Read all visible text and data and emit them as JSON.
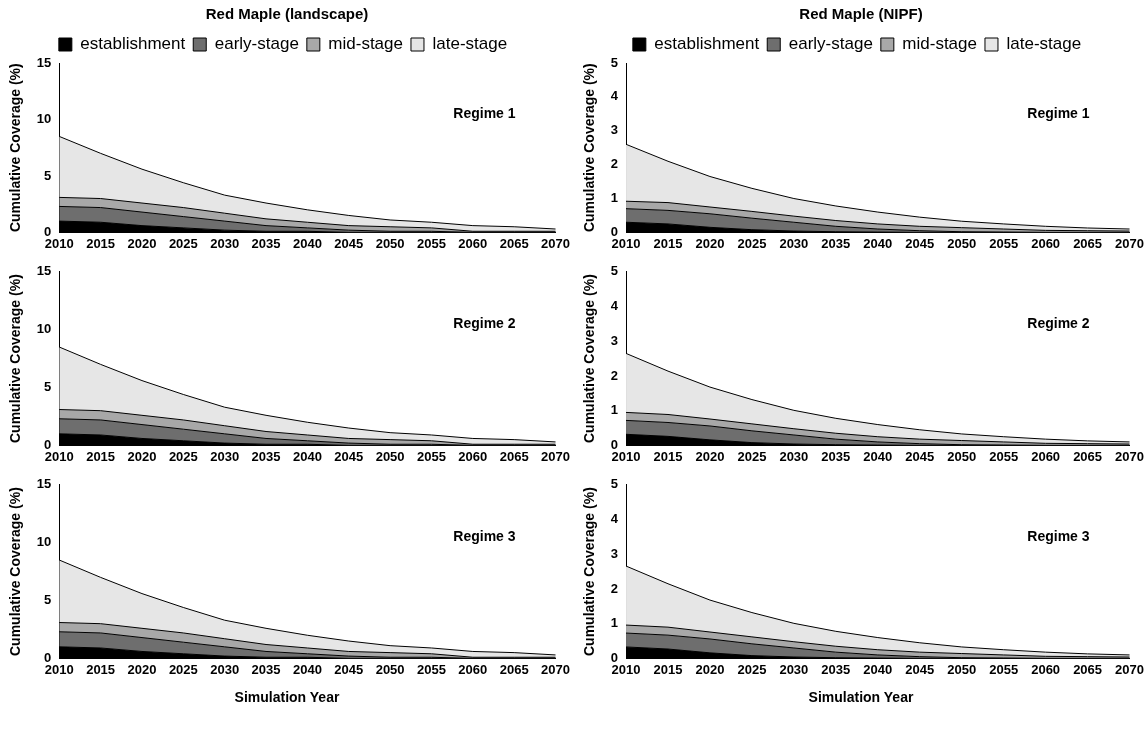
{
  "chart_data": [
    {
      "type": "area",
      "stacked": true,
      "title": "Red Maple (landscape)",
      "ylabel": "Cumulative Coverage (%)",
      "annotations": [
        "Regime 1"
      ],
      "legend": "top",
      "grid": false,
      "categories": [
        "2010",
        "2015",
        "2020",
        "2025",
        "2030",
        "2035",
        "2040",
        "2045",
        "2050",
        "2055",
        "2060",
        "2065",
        "2070"
      ],
      "ylim": [
        0,
        15
      ],
      "yticks": [
        0,
        5,
        10,
        15
      ],
      "series": [
        {
          "name": "establishment",
          "color": "#000000",
          "values": [
            1.0,
            0.9,
            0.6,
            0.4,
            0.2,
            0.1,
            0.1,
            0,
            0,
            0,
            0,
            0,
            0
          ]
        },
        {
          "name": "early-stage",
          "color": "#6e6e6e",
          "values": [
            1.3,
            1.3,
            1.2,
            1.0,
            0.8,
            0.5,
            0.3,
            0.2,
            0.1,
            0.1,
            0,
            0,
            0
          ]
        },
        {
          "name": "mid-stage",
          "color": "#a8a8a8",
          "values": [
            0.8,
            0.8,
            0.8,
            0.8,
            0.7,
            0.6,
            0.5,
            0.4,
            0.4,
            0.3,
            0.1,
            0.1,
            0.1
          ]
        },
        {
          "name": "late-stage",
          "color": "#e6e6e6",
          "values": [
            5.4,
            4.0,
            3.0,
            2.2,
            1.6,
            1.4,
            1.1,
            0.9,
            0.6,
            0.5,
            0.5,
            0.4,
            0.2
          ]
        }
      ]
    },
    {
      "type": "area",
      "stacked": true,
      "title": "Red Maple (NIPF)",
      "ylabel": "Cumulative Coverage (%)",
      "annotations": [
        "Regime 1"
      ],
      "legend": "top",
      "grid": false,
      "categories": [
        "2010",
        "2015",
        "2020",
        "2025",
        "2030",
        "2035",
        "2040",
        "2045",
        "2050",
        "2055",
        "2060",
        "2065",
        "2070"
      ],
      "ylim": [
        0,
        5
      ],
      "yticks": [
        0,
        1,
        2,
        3,
        4,
        5
      ],
      "series": [
        {
          "name": "establishment",
          "color": "#000000",
          "values": [
            0.3,
            0.25,
            0.15,
            0.08,
            0.04,
            0.02,
            0.01,
            0,
            0,
            0,
            0,
            0,
            0
          ]
        },
        {
          "name": "early-stage",
          "color": "#6e6e6e",
          "values": [
            0.4,
            0.4,
            0.4,
            0.34,
            0.26,
            0.16,
            0.09,
            0.05,
            0.02,
            0.01,
            0,
            0,
            0
          ]
        },
        {
          "name": "mid-stage",
          "color": "#a8a8a8",
          "values": [
            0.22,
            0.23,
            0.2,
            0.2,
            0.18,
            0.17,
            0.15,
            0.13,
            0.12,
            0.09,
            0.06,
            0.05,
            0.04
          ]
        },
        {
          "name": "late-stage",
          "color": "#e6e6e6",
          "values": [
            1.68,
            1.22,
            0.9,
            0.68,
            0.52,
            0.43,
            0.35,
            0.27,
            0.19,
            0.15,
            0.12,
            0.08,
            0.06
          ]
        }
      ]
    },
    {
      "type": "area",
      "stacked": true,
      "ylabel": "Cumulative Coverage (%)",
      "annotations": [
        "Regime 2"
      ],
      "grid": false,
      "categories": [
        "2010",
        "2015",
        "2020",
        "2025",
        "2030",
        "2035",
        "2040",
        "2045",
        "2050",
        "2055",
        "2060",
        "2065",
        "2070"
      ],
      "ylim": [
        0,
        15
      ],
      "yticks": [
        0,
        5,
        10,
        15
      ],
      "series": [
        {
          "color": "#000000",
          "values": [
            1.0,
            0.9,
            0.6,
            0.4,
            0.2,
            0.1,
            0.1,
            0,
            0,
            0,
            0,
            0,
            0
          ]
        },
        {
          "color": "#6e6e6e",
          "values": [
            1.3,
            1.3,
            1.2,
            1.0,
            0.8,
            0.5,
            0.3,
            0.2,
            0.1,
            0.1,
            0,
            0,
            0
          ]
        },
        {
          "color": "#a8a8a8",
          "values": [
            0.8,
            0.8,
            0.8,
            0.8,
            0.7,
            0.6,
            0.5,
            0.4,
            0.4,
            0.3,
            0.1,
            0.1,
            0.1
          ]
        },
        {
          "color": "#e6e6e6",
          "values": [
            5.4,
            4.0,
            3.0,
            2.2,
            1.6,
            1.4,
            1.1,
            0.9,
            0.6,
            0.5,
            0.5,
            0.4,
            0.2
          ]
        }
      ]
    },
    {
      "type": "area",
      "stacked": true,
      "ylabel": "Cumulative Coverage (%)",
      "annotations": [
        "Regime 2"
      ],
      "grid": false,
      "categories": [
        "2010",
        "2015",
        "2020",
        "2025",
        "2030",
        "2035",
        "2040",
        "2045",
        "2050",
        "2055",
        "2060",
        "2065",
        "2070"
      ],
      "ylim": [
        0,
        5
      ],
      "yticks": [
        0,
        1,
        2,
        3,
        4,
        5
      ],
      "series": [
        {
          "color": "#000000",
          "values": [
            0.32,
            0.26,
            0.16,
            0.08,
            0.04,
            0.02,
            0.01,
            0,
            0,
            0,
            0,
            0,
            0
          ]
        },
        {
          "color": "#6e6e6e",
          "values": [
            0.4,
            0.4,
            0.4,
            0.34,
            0.26,
            0.16,
            0.09,
            0.05,
            0.02,
            0.01,
            0,
            0,
            0
          ]
        },
        {
          "color": "#a8a8a8",
          "values": [
            0.23,
            0.23,
            0.2,
            0.2,
            0.18,
            0.17,
            0.15,
            0.13,
            0.12,
            0.09,
            0.06,
            0.05,
            0.04
          ]
        },
        {
          "color": "#e6e6e6",
          "values": [
            1.7,
            1.25,
            0.92,
            0.7,
            0.53,
            0.43,
            0.35,
            0.27,
            0.19,
            0.15,
            0.12,
            0.08,
            0.06
          ]
        }
      ]
    },
    {
      "type": "area",
      "stacked": true,
      "ylabel": "Cumulative Coverage (%)",
      "xlabel": "Simulation Year",
      "annotations": [
        "Regime 3"
      ],
      "grid": false,
      "categories": [
        "2010",
        "2015",
        "2020",
        "2025",
        "2030",
        "2035",
        "2040",
        "2045",
        "2050",
        "2055",
        "2060",
        "2065",
        "2070"
      ],
      "ylim": [
        0,
        15
      ],
      "yticks": [
        0,
        5,
        10,
        15
      ],
      "series": [
        {
          "color": "#000000",
          "values": [
            1.0,
            0.9,
            0.6,
            0.4,
            0.2,
            0.1,
            0.1,
            0,
            0,
            0,
            0,
            0,
            0
          ]
        },
        {
          "color": "#6e6e6e",
          "values": [
            1.3,
            1.3,
            1.2,
            1.0,
            0.8,
            0.5,
            0.3,
            0.2,
            0.1,
            0.1,
            0,
            0,
            0
          ]
        },
        {
          "color": "#a8a8a8",
          "values": [
            0.8,
            0.8,
            0.8,
            0.8,
            0.7,
            0.6,
            0.5,
            0.4,
            0.4,
            0.3,
            0.1,
            0.1,
            0.1
          ]
        },
        {
          "color": "#e6e6e6",
          "values": [
            5.4,
            4.0,
            3.0,
            2.2,
            1.6,
            1.4,
            1.1,
            0.9,
            0.6,
            0.5,
            0.5,
            0.4,
            0.2
          ]
        }
      ]
    },
    {
      "type": "area",
      "stacked": true,
      "ylabel": "Cumulative Coverage (%)",
      "xlabel": "Simulation Year",
      "annotations": [
        "Regime 3"
      ],
      "grid": false,
      "categories": [
        "2010",
        "2015",
        "2020",
        "2025",
        "2030",
        "2035",
        "2040",
        "2045",
        "2050",
        "2055",
        "2060",
        "2065",
        "2070"
      ],
      "ylim": [
        0,
        5
      ],
      "yticks": [
        0,
        1,
        2,
        3,
        4,
        5
      ],
      "series": [
        {
          "color": "#000000",
          "values": [
            0.33,
            0.27,
            0.16,
            0.08,
            0.04,
            0.02,
            0.01,
            0,
            0,
            0,
            0,
            0,
            0
          ]
        },
        {
          "color": "#6e6e6e",
          "values": [
            0.4,
            0.4,
            0.4,
            0.34,
            0.26,
            0.16,
            0.09,
            0.05,
            0.02,
            0.01,
            0,
            0,
            0
          ]
        },
        {
          "color": "#a8a8a8",
          "values": [
            0.23,
            0.23,
            0.2,
            0.2,
            0.18,
            0.17,
            0.15,
            0.13,
            0.12,
            0.09,
            0.06,
            0.05,
            0.04
          ]
        },
        {
          "color": "#e6e6e6",
          "values": [
            1.7,
            1.25,
            0.92,
            0.7,
            0.53,
            0.43,
            0.35,
            0.27,
            0.19,
            0.15,
            0.12,
            0.08,
            0.06
          ]
        }
      ]
    }
  ]
}
